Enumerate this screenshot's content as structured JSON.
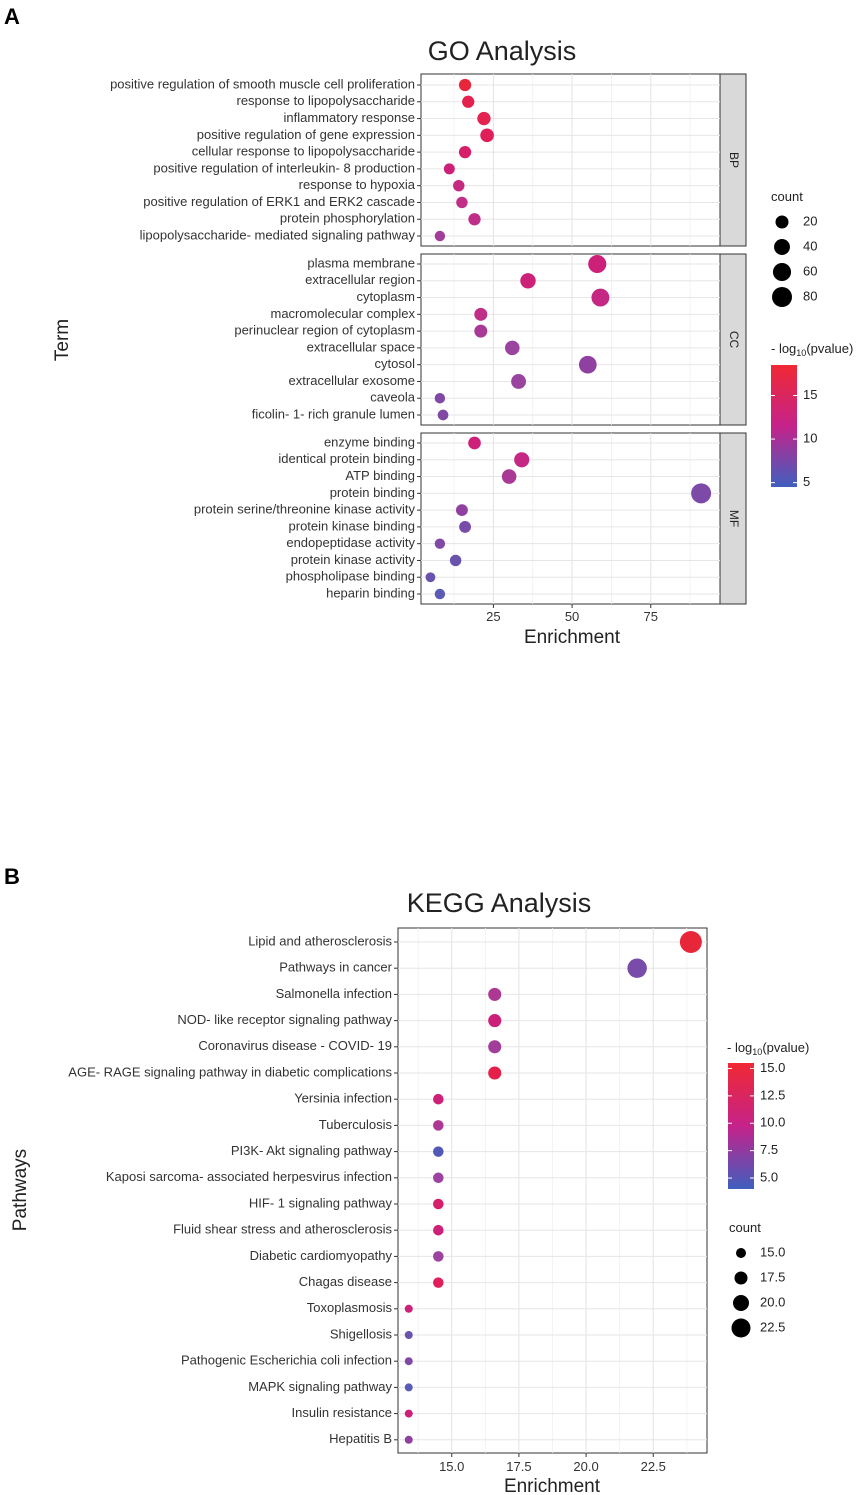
{
  "figure": {
    "panel_a_label": "A",
    "panel_b_label": "B"
  },
  "chart_data": [
    {
      "type": "scatter",
      "title": "GO Analysis",
      "xlabel": "Enrichment",
      "ylabel": "Term",
      "xlim": [
        2,
        97
      ],
      "xticks": [
        25,
        50,
        75
      ],
      "x_tick_labels": [
        "25",
        "50",
        "75"
      ],
      "facets": [
        "BP",
        "CC",
        "MF"
      ],
      "color_legend_title": "- log10(pvalue)",
      "color_legend": {
        "title_main": "- log",
        "title_sub": "10",
        "title_rest": "(pvalue)",
        "range": [
          4.5,
          18.5
        ],
        "ticks": [
          5,
          10,
          15
        ],
        "tick_labels": [
          "5",
          "10",
          "15"
        ]
      },
      "size_legend": {
        "title": "count",
        "values": [
          20,
          40,
          60,
          80
        ],
        "labels": [
          "20",
          "40",
          "60",
          "80"
        ]
      },
      "terms": [
        {
          "facet": "BP",
          "term": "positive regulation of smooth muscle cell proliferation",
          "enrichment": 16,
          "count": 16,
          "neglog10p": 18.5,
          "color": "#e8263a"
        },
        {
          "facet": "BP",
          "term": "response to lipopolysaccharide",
          "enrichment": 17,
          "count": 16,
          "neglog10p": 16.5,
          "color": "#e4204f"
        },
        {
          "facet": "BP",
          "term": "inflammatory response",
          "enrichment": 22,
          "count": 22,
          "neglog10p": 16,
          "color": "#e42350"
        },
        {
          "facet": "BP",
          "term": "positive regulation of gene expression",
          "enrichment": 23,
          "count": 24,
          "neglog10p": 15,
          "color": "#e01f5a"
        },
        {
          "facet": "BP",
          "term": "cellular response to lipopolysaccharide",
          "enrichment": 16,
          "count": 16,
          "neglog10p": 13,
          "color": "#d61e6a"
        },
        {
          "facet": "BP",
          "term": "positive regulation of interleukin- 8 production",
          "enrichment": 11,
          "count": 10,
          "neglog10p": 11,
          "color": "#cc2079"
        },
        {
          "facet": "BP",
          "term": "response to hypoxia",
          "enrichment": 14,
          "count": 12,
          "neglog10p": 11,
          "color": "#c62a80"
        },
        {
          "facet": "BP",
          "term": "positive regulation of ERK1 and ERK2 cascade",
          "enrichment": 15,
          "count": 12,
          "neglog10p": 10,
          "color": "#bf2f87"
        },
        {
          "facet": "BP",
          "term": "protein phosphorylation",
          "enrichment": 19,
          "count": 16,
          "neglog10p": 10,
          "color": "#bf2f87"
        },
        {
          "facet": "BP",
          "term": "lipopolysaccharide- mediated signaling pathway",
          "enrichment": 8,
          "count": 8,
          "neglog10p": 9,
          "color": "#a23d99"
        },
        {
          "facet": "CC",
          "term": "plasma membrane",
          "enrichment": 58,
          "count": 60,
          "neglog10p": 12,
          "color": "#cc2079"
        },
        {
          "facet": "CC",
          "term": "extracellular region",
          "enrichment": 36,
          "count": 36,
          "neglog10p": 12,
          "color": "#cc2079"
        },
        {
          "facet": "CC",
          "term": "cytoplasm",
          "enrichment": 59,
          "count": 58,
          "neglog10p": 11,
          "color": "#c42882"
        },
        {
          "facet": "CC",
          "term": "macromolecular complex",
          "enrichment": 21,
          "count": 20,
          "neglog10p": 10,
          "color": "#bf2f87"
        },
        {
          "facet": "CC",
          "term": "perinuclear region of cytoplasm",
          "enrichment": 21,
          "count": 20,
          "neglog10p": 9,
          "color": "#a83a96"
        },
        {
          "facet": "CC",
          "term": "extracellular space",
          "enrichment": 31,
          "count": 30,
          "neglog10p": 8,
          "color": "#9a44a0"
        },
        {
          "facet": "CC",
          "term": "cytosol",
          "enrichment": 55,
          "count": 56,
          "neglog10p": 8,
          "color": "#9040a0"
        },
        {
          "facet": "CC",
          "term": "extracellular exosome",
          "enrichment": 33,
          "count": 32,
          "neglog10p": 8,
          "color": "#9a44a0"
        },
        {
          "facet": "CC",
          "term": "caveola",
          "enrichment": 8,
          "count": 8,
          "neglog10p": 7,
          "color": "#8248a6"
        },
        {
          "facet": "CC",
          "term": "ficolin- 1- rich granule lumen",
          "enrichment": 9,
          "count": 9,
          "neglog10p": 7,
          "color": "#8248a6"
        },
        {
          "facet": "MF",
          "term": "enzyme binding",
          "enrichment": 19,
          "count": 18,
          "neglog10p": 12,
          "color": "#cc2079"
        },
        {
          "facet": "MF",
          "term": "identical protein binding",
          "enrichment": 34,
          "count": 34,
          "neglog10p": 11,
          "color": "#c42882"
        },
        {
          "facet": "MF",
          "term": "ATP binding",
          "enrichment": 30,
          "count": 30,
          "neglog10p": 10,
          "color": "#a83a96"
        },
        {
          "facet": "MF",
          "term": "protein binding",
          "enrichment": 91,
          "count": 80,
          "neglog10p": 7,
          "color": "#7e4aa8"
        },
        {
          "facet": "MF",
          "term": "protein serine/threonine kinase activity",
          "enrichment": 15,
          "count": 14,
          "neglog10p": 8,
          "color": "#9040a0"
        },
        {
          "facet": "MF",
          "term": "protein kinase binding",
          "enrichment": 16,
          "count": 14,
          "neglog10p": 7,
          "color": "#7a4ca9"
        },
        {
          "facet": "MF",
          "term": "endopeptidase activity",
          "enrichment": 8,
          "count": 8,
          "neglog10p": 7,
          "color": "#8248a6"
        },
        {
          "facet": "MF",
          "term": "protein kinase activity",
          "enrichment": 13,
          "count": 12,
          "neglog10p": 6,
          "color": "#6a53ad"
        },
        {
          "facet": "MF",
          "term": "phospholipase binding",
          "enrichment": 5,
          "count": 6,
          "neglog10p": 6,
          "color": "#6a53ad"
        },
        {
          "facet": "MF",
          "term": "heparin binding",
          "enrichment": 8,
          "count": 8,
          "neglog10p": 5.5,
          "color": "#5a5bb4"
        }
      ]
    },
    {
      "type": "scatter",
      "title": "KEGG Analysis",
      "xlabel": "Enrichment",
      "ylabel": "Pathways",
      "xlim": [
        13.0,
        24.5
      ],
      "xticks": [
        15.0,
        17.5,
        20.0,
        22.5
      ],
      "x_tick_labels": [
        "15.0",
        "17.5",
        "20.0",
        "22.5"
      ],
      "color_legend": {
        "title_main": "- log",
        "title_sub": "10",
        "title_rest": "(pvalue)",
        "range": [
          4.0,
          15.5
        ],
        "ticks": [
          5.0,
          7.5,
          10.0,
          12.5,
          15.0
        ],
        "tick_labels": [
          "5.0",
          "7.5",
          "10.0",
          "12.5",
          "15.0"
        ]
      },
      "size_legend": {
        "title": "count",
        "values": [
          15.0,
          17.5,
          20.0,
          22.5
        ],
        "labels": [
          "15.0",
          "17.5",
          "20.0",
          "22.5"
        ]
      },
      "pathways": [
        {
          "pathway": "Lipid and atherosclerosis",
          "enrichment": 23.9,
          "count": 24,
          "neglog10p": 15.5,
          "color": "#e8263a"
        },
        {
          "pathway": "Pathways in cancer",
          "enrichment": 21.9,
          "count": 22,
          "neglog10p": 6.5,
          "color": "#7a4ca9"
        },
        {
          "pathway": "Salmonella infection",
          "enrichment": 16.6,
          "count": 17,
          "neglog10p": 9,
          "color": "#ac3893"
        },
        {
          "pathway": "NOD- like receptor signaling pathway",
          "enrichment": 16.6,
          "count": 17,
          "neglog10p": 11,
          "color": "#cc2079"
        },
        {
          "pathway": "Coronavirus disease -  COVID- 19",
          "enrichment": 16.6,
          "count": 17,
          "neglog10p": 8.5,
          "color": "#a23d99"
        },
        {
          "pathway": "AGE- RAGE signaling pathway in diabetic complications",
          "enrichment": 16.6,
          "count": 17,
          "neglog10p": 14,
          "color": "#e4204a"
        },
        {
          "pathway": "Yersinia infection",
          "enrichment": 14.5,
          "count": 15,
          "neglog10p": 11,
          "color": "#cc2079"
        },
        {
          "pathway": "Tuberculosis",
          "enrichment": 14.5,
          "count": 15,
          "neglog10p": 9,
          "color": "#ac3893"
        },
        {
          "pathway": "PI3K- Akt signaling pathway",
          "enrichment": 14.5,
          "count": 15,
          "neglog10p": 5,
          "color": "#5059b5"
        },
        {
          "pathway": "Kaposi sarcoma- associated herpesvirus infection",
          "enrichment": 14.5,
          "count": 15,
          "neglog10p": 8,
          "color": "#9c42a0"
        },
        {
          "pathway": "HIF- 1 signaling pathway",
          "enrichment": 14.5,
          "count": 15,
          "neglog10p": 12,
          "color": "#d61e6a"
        },
        {
          "pathway": "Fluid shear stress and atherosclerosis",
          "enrichment": 14.5,
          "count": 15,
          "neglog10p": 11,
          "color": "#cc2079"
        },
        {
          "pathway": "Diabetic cardiomyopathy",
          "enrichment": 14.5,
          "count": 15,
          "neglog10p": 8,
          "color": "#9c42a0"
        },
        {
          "pathway": "Chagas disease",
          "enrichment": 14.5,
          "count": 15,
          "neglog10p": 13,
          "color": "#e01f5a"
        },
        {
          "pathway": "Toxoplasmosis",
          "enrichment": 13.4,
          "count": 13,
          "neglog10p": 11,
          "color": "#cc2079"
        },
        {
          "pathway": "Shigellosis",
          "enrichment": 13.4,
          "count": 13,
          "neglog10p": 6.5,
          "color": "#6a53ad"
        },
        {
          "pathway": "Pathogenic Escherichia coli infection",
          "enrichment": 13.4,
          "count": 13,
          "neglog10p": 7.5,
          "color": "#8248a6"
        },
        {
          "pathway": "MAPK signaling pathway",
          "enrichment": 13.4,
          "count": 13,
          "neglog10p": 5.5,
          "color": "#5a5bb4"
        },
        {
          "pathway": "Insulin resistance",
          "enrichment": 13.4,
          "count": 13,
          "neglog10p": 11,
          "color": "#cc2079"
        },
        {
          "pathway": "Hepatitis B",
          "enrichment": 13.4,
          "count": 13,
          "neglog10p": 8,
          "color": "#9040a0"
        }
      ]
    }
  ]
}
